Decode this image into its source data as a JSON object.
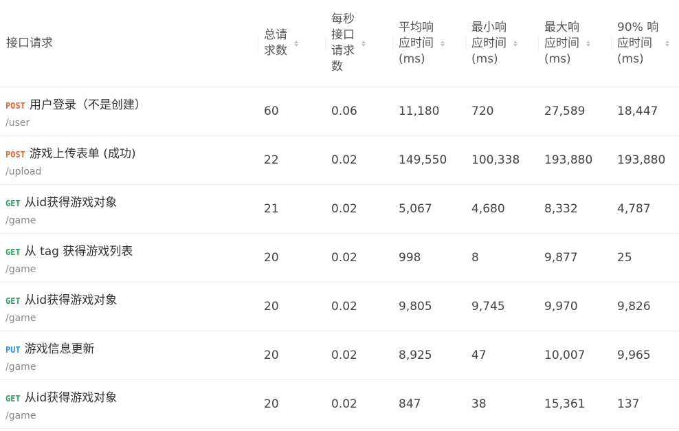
{
  "columns": [
    {
      "key": "api",
      "label": "接口请求",
      "sortable": false
    },
    {
      "key": "total",
      "label": "总请求数",
      "sortable": true
    },
    {
      "key": "rps",
      "label": "每秒接口请求数",
      "sortable": true
    },
    {
      "key": "avg",
      "label": "平均响应时间(ms)",
      "sortable": true
    },
    {
      "key": "min",
      "label": "最小响应时间(ms)",
      "sortable": true
    },
    {
      "key": "max",
      "label": "最大响应时间(ms)",
      "sortable": true
    },
    {
      "key": "p90",
      "label": "90% 响应时间(ms)",
      "sortable": true
    }
  ],
  "header_lines": {
    "api": [
      "接口请求"
    ],
    "total": [
      "总请",
      "求数"
    ],
    "rps": [
      "每秒",
      "接口",
      "请求",
      "数"
    ],
    "avg": [
      "平均响",
      "应时间",
      "(ms)"
    ],
    "min": [
      "最小响",
      "应时间",
      "(ms)"
    ],
    "max": [
      "最大响",
      "应时间",
      "(ms)"
    ],
    "p90": [
      "90% 响",
      "应时间",
      "(ms)"
    ]
  },
  "rows": [
    {
      "method": "POST",
      "name": "用户登录（不是创建）",
      "path": "/user",
      "total": "60",
      "rps": "0.06",
      "avg": "11,180",
      "min": "720",
      "max": "27,589",
      "p90": "18,447"
    },
    {
      "method": "POST",
      "name": "游戏上传表单 (成功)",
      "path": "/upload",
      "total": "22",
      "rps": "0.02",
      "avg": "149,550",
      "min": "100,338",
      "max": "193,880",
      "p90": "193,880"
    },
    {
      "method": "GET",
      "name": "从id获得游戏对象",
      "path": "/game",
      "total": "21",
      "rps": "0.02",
      "avg": "5,067",
      "min": "4,680",
      "max": "8,332",
      "p90": "4,787"
    },
    {
      "method": "GET",
      "name": "从 tag 获得游戏列表",
      "path": "/game",
      "total": "20",
      "rps": "0.02",
      "avg": "998",
      "min": "8",
      "max": "9,877",
      "p90": "25"
    },
    {
      "method": "GET",
      "name": "从id获得游戏对象",
      "path": "/game",
      "total": "20",
      "rps": "0.02",
      "avg": "9,805",
      "min": "9,745",
      "max": "9,970",
      "p90": "9,826"
    },
    {
      "method": "PUT",
      "name": "游戏信息更新",
      "path": "/game",
      "total": "20",
      "rps": "0.02",
      "avg": "8,925",
      "min": "47",
      "max": "10,007",
      "p90": "9,965"
    },
    {
      "method": "GET",
      "name": "从id获得游戏对象",
      "path": "/game",
      "total": "20",
      "rps": "0.02",
      "avg": "847",
      "min": "38",
      "max": "15,361",
      "p90": "137"
    }
  ]
}
